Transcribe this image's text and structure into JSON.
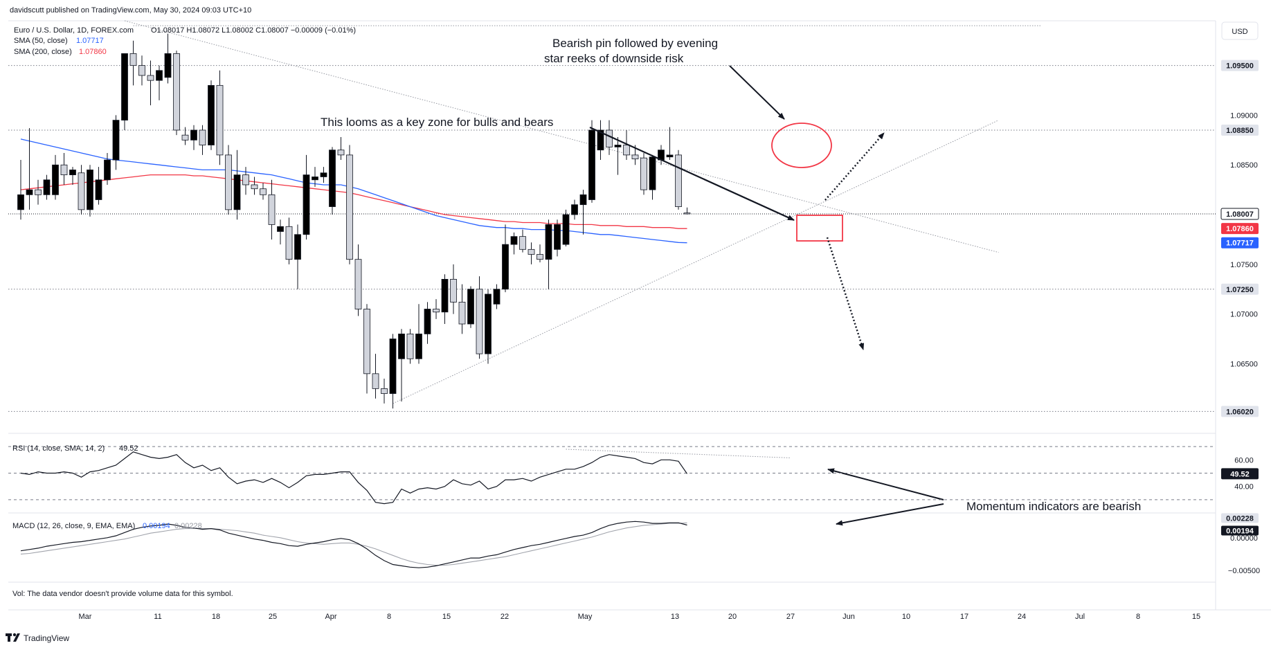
{
  "header": {
    "published": "davidscutt published on TradingView.com, May 30, 2024 09:03 UTC+10",
    "symbol": "Euro / U.S. Dollar, 1D, FOREX.com",
    "ohlc": "O1.08017 H1.08072 L1.08002 C1.08007 −0.00009 (−0.01%)",
    "sma50_label": "SMA (50, close)",
    "sma50_value": "1.07717",
    "sma200_label": "SMA (200, close)",
    "sma200_value": "1.07860",
    "currency": "USD"
  },
  "colors": {
    "sma50": "#2962ff",
    "sma200": "#f23645",
    "candle_up": "#000000",
    "candle_down": "#d1d4dc",
    "annotation_red": "#f23645",
    "last_price": "#131722"
  },
  "chart_data": [
    {
      "type": "candlestick",
      "title": "Euro / U.S. Dollar, 1D, FOREX.com",
      "ylim": [
        1.058,
        1.0995
      ],
      "yticks": [
        1.065,
        1.07,
        1.075,
        1.085,
        1.09
      ],
      "xtick_labels": [
        "Mar",
        "11",
        "18",
        "25",
        "Apr",
        "8",
        "15",
        "22",
        "May",
        "13",
        "20",
        "27",
        "Jun",
        "10",
        "17",
        "24",
        "Jul",
        "8",
        "15"
      ],
      "candles": [
        {
          "o": 1.0805,
          "h": 1.0855,
          "l": 1.0795,
          "c": 1.082
        },
        {
          "o": 1.082,
          "h": 1.0887,
          "l": 1.0805,
          "c": 1.0825
        },
        {
          "o": 1.0825,
          "h": 1.0835,
          "l": 1.081,
          "c": 1.082
        },
        {
          "o": 1.082,
          "h": 1.084,
          "l": 1.0815,
          "c": 1.0835
        },
        {
          "o": 1.082,
          "h": 1.086,
          "l": 1.0815,
          "c": 1.085
        },
        {
          "o": 1.085,
          "h": 1.0862,
          "l": 1.083,
          "c": 1.084
        },
        {
          "o": 1.084,
          "h": 1.0848,
          "l": 1.083,
          "c": 1.0845
        },
        {
          "o": 1.0842,
          "h": 1.085,
          "l": 1.08,
          "c": 1.0805
        },
        {
          "o": 1.0805,
          "h": 1.085,
          "l": 1.0798,
          "c": 1.0845
        },
        {
          "o": 1.0815,
          "h": 1.0848,
          "l": 1.081,
          "c": 1.0835
        },
        {
          "o": 1.0835,
          "h": 1.0862,
          "l": 1.083,
          "c": 1.0855
        },
        {
          "o": 1.0855,
          "h": 1.09,
          "l": 1.0845,
          "c": 1.0895
        },
        {
          "o": 1.0895,
          "h": 1.096,
          "l": 1.0885,
          "c": 1.0962
        },
        {
          "o": 1.0962,
          "h": 1.0975,
          "l": 1.093,
          "c": 1.095
        },
        {
          "o": 1.095,
          "h": 1.096,
          "l": 1.093,
          "c": 1.094
        },
        {
          "o": 1.094,
          "h": 1.0955,
          "l": 1.091,
          "c": 1.0935
        },
        {
          "o": 1.0935,
          "h": 1.095,
          "l": 1.0915,
          "c": 1.0945
        },
        {
          "o": 1.0938,
          "h": 1.0982,
          "l": 1.0932,
          "c": 1.0962
        },
        {
          "o": 1.0962,
          "h": 1.0965,
          "l": 1.088,
          "c": 1.0885
        },
        {
          "o": 1.088,
          "h": 1.0888,
          "l": 1.087,
          "c": 1.0875
        },
        {
          "o": 1.0875,
          "h": 1.089,
          "l": 1.0865,
          "c": 1.0885
        },
        {
          "o": 1.0885,
          "h": 1.089,
          "l": 1.086,
          "c": 1.087
        },
        {
          "o": 1.087,
          "h": 1.0935,
          "l": 1.0865,
          "c": 1.093
        },
        {
          "o": 1.093,
          "h": 1.0945,
          "l": 1.085,
          "c": 1.086
        },
        {
          "o": 1.086,
          "h": 1.087,
          "l": 1.08,
          "c": 1.0805
        },
        {
          "o": 1.0805,
          "h": 1.0865,
          "l": 1.0795,
          "c": 1.084
        },
        {
          "o": 1.084,
          "h": 1.0848,
          "l": 1.082,
          "c": 1.083
        },
        {
          "o": 1.083,
          "h": 1.0838,
          "l": 1.082,
          "c": 1.0826
        },
        {
          "o": 1.0826,
          "h": 1.0832,
          "l": 1.0815,
          "c": 1.082
        },
        {
          "o": 1.082,
          "h": 1.0835,
          "l": 1.0775,
          "c": 1.079
        },
        {
          "o": 1.0783,
          "h": 1.0795,
          "l": 1.077,
          "c": 1.0788
        },
        {
          "o": 1.0788,
          "h": 1.0797,
          "l": 1.075,
          "c": 1.0755
        },
        {
          "o": 1.0755,
          "h": 1.079,
          "l": 1.0725,
          "c": 1.078
        },
        {
          "o": 1.078,
          "h": 1.086,
          "l": 1.0775,
          "c": 1.084
        },
        {
          "o": 1.0835,
          "h": 1.0848,
          "l": 1.0828,
          "c": 1.0838
        },
        {
          "o": 1.0838,
          "h": 1.0848,
          "l": 1.0832,
          "c": 1.0842
        },
        {
          "o": 1.0808,
          "h": 1.0868,
          "l": 1.08,
          "c": 1.0865
        },
        {
          "o": 1.0865,
          "h": 1.0878,
          "l": 1.0855,
          "c": 1.086
        },
        {
          "o": 1.086,
          "h": 1.087,
          "l": 1.075,
          "c": 1.0755
        },
        {
          "o": 1.0755,
          "h": 1.077,
          "l": 1.0698,
          "c": 1.0705
        },
        {
          "o": 1.0705,
          "h": 1.071,
          "l": 1.062,
          "c": 1.064
        },
        {
          "o": 1.064,
          "h": 1.066,
          "l": 1.0615,
          "c": 1.0625
        },
        {
          "o": 1.0625,
          "h": 1.0635,
          "l": 1.061,
          "c": 1.062
        },
        {
          "o": 1.062,
          "h": 1.068,
          "l": 1.0605,
          "c": 1.0675
        },
        {
          "o": 1.0655,
          "h": 1.0685,
          "l": 1.0612,
          "c": 1.068
        },
        {
          "o": 1.068,
          "h": 1.0685,
          "l": 1.065,
          "c": 1.0655
        },
        {
          "o": 1.0655,
          "h": 1.071,
          "l": 1.065,
          "c": 1.068
        },
        {
          "o": 1.068,
          "h": 1.0712,
          "l": 1.067,
          "c": 1.0705
        },
        {
          "o": 1.0705,
          "h": 1.0715,
          "l": 1.0695,
          "c": 1.0702
        },
        {
          "o": 1.0702,
          "h": 1.074,
          "l": 1.069,
          "c": 1.0735
        },
        {
          "o": 1.0735,
          "h": 1.075,
          "l": 1.07,
          "c": 1.0712
        },
        {
          "o": 1.0712,
          "h": 1.073,
          "l": 1.068,
          "c": 1.069
        },
        {
          "o": 1.069,
          "h": 1.0728,
          "l": 1.0686,
          "c": 1.0725
        },
        {
          "o": 1.0725,
          "h": 1.0738,
          "l": 1.0655,
          "c": 1.066
        },
        {
          "o": 1.066,
          "h": 1.0725,
          "l": 1.065,
          "c": 1.072
        },
        {
          "o": 1.071,
          "h": 1.073,
          "l": 1.0705,
          "c": 1.0725
        },
        {
          "o": 1.0725,
          "h": 1.079,
          "l": 1.0722,
          "c": 1.077
        },
        {
          "o": 1.077,
          "h": 1.0782,
          "l": 1.076,
          "c": 1.0778
        },
        {
          "o": 1.0778,
          "h": 1.0785,
          "l": 1.0762,
          "c": 1.0765
        },
        {
          "o": 1.0765,
          "h": 1.0772,
          "l": 1.075,
          "c": 1.076
        },
        {
          "o": 1.076,
          "h": 1.077,
          "l": 1.0752,
          "c": 1.0755
        },
        {
          "o": 1.0755,
          "h": 1.0795,
          "l": 1.0725,
          "c": 1.079
        },
        {
          "o": 1.0765,
          "h": 1.0795,
          "l": 1.0758,
          "c": 1.079
        },
        {
          "o": 1.077,
          "h": 1.0805,
          "l": 1.0768,
          "c": 1.08
        },
        {
          "o": 1.08,
          "h": 1.0815,
          "l": 1.0795,
          "c": 1.081
        },
        {
          "o": 1.081,
          "h": 1.0825,
          "l": 1.078,
          "c": 1.082
        },
        {
          "o": 1.0815,
          "h": 1.0895,
          "l": 1.0812,
          "c": 1.0885
        },
        {
          "o": 1.0865,
          "h": 1.0895,
          "l": 1.0855,
          "c": 1.0885
        },
        {
          "o": 1.0885,
          "h": 1.0895,
          "l": 1.086,
          "c": 1.0868
        },
        {
          "o": 1.0868,
          "h": 1.0878,
          "l": 1.084,
          "c": 1.087
        },
        {
          "o": 1.087,
          "h": 1.0885,
          "l": 1.0855,
          "c": 1.086
        },
        {
          "o": 1.086,
          "h": 1.087,
          "l": 1.085,
          "c": 1.0856
        },
        {
          "o": 1.0857,
          "h": 1.0862,
          "l": 1.082,
          "c": 1.0825
        },
        {
          "o": 1.0825,
          "h": 1.086,
          "l": 1.0815,
          "c": 1.0858
        },
        {
          "o": 1.0855,
          "h": 1.087,
          "l": 1.085,
          "c": 1.0865
        },
        {
          "o": 1.0858,
          "h": 1.0888,
          "l": 1.0855,
          "c": 1.086
        },
        {
          "o": 1.086,
          "h": 1.0865,
          "l": 1.0805,
          "c": 1.0808
        },
        {
          "o": 1.08017,
          "h": 1.08072,
          "l": 1.08002,
          "c": 1.08007
        }
      ],
      "sma50": [
        1.0876,
        1.0874,
        1.0872,
        1.087,
        1.0868,
        1.0866,
        1.0864,
        1.0862,
        1.086,
        1.0858,
        1.0856,
        1.0855,
        1.0854,
        1.0853,
        1.0852,
        1.0851,
        1.085,
        1.0849,
        1.0848,
        1.0847,
        1.0846,
        1.0845,
        1.0845,
        1.0845,
        1.0845,
        1.0844,
        1.0843,
        1.0842,
        1.0841,
        1.084,
        1.0838,
        1.0836,
        1.0834,
        1.0832,
        1.0831,
        1.083,
        1.083,
        1.083,
        1.0828,
        1.0826,
        1.0823,
        1.082,
        1.0817,
        1.0814,
        1.0811,
        1.0808,
        1.0805,
        1.0802,
        1.0799,
        1.0797,
        1.0795,
        1.0793,
        1.0791,
        1.0789,
        1.0788,
        1.0787,
        1.0787,
        1.0786,
        1.0786,
        1.0785,
        1.0785,
        1.0785,
        1.0784,
        1.0784,
        1.0783,
        1.0782,
        1.0781,
        1.078,
        1.078,
        1.0779,
        1.0778,
        1.0777,
        1.0776,
        1.0775,
        1.0774,
        1.0773,
        1.0772,
        1.07717
      ],
      "sma200": [
        1.0825,
        1.0826,
        1.0827,
        1.0828,
        1.0829,
        1.083,
        1.0831,
        1.0832,
        1.0833,
        1.0834,
        1.0835,
        1.0836,
        1.0837,
        1.0838,
        1.0839,
        1.084,
        1.084,
        1.084,
        1.084,
        1.084,
        1.0839,
        1.0839,
        1.0838,
        1.0837,
        1.0836,
        1.0835,
        1.0834,
        1.0833,
        1.0832,
        1.0831,
        1.083,
        1.0829,
        1.0828,
        1.0827,
        1.0826,
        1.0825,
        1.0824,
        1.0823,
        1.0822,
        1.082,
        1.0818,
        1.0816,
        1.0814,
        1.0812,
        1.081,
        1.0808,
        1.0806,
        1.0804,
        1.0802,
        1.08,
        1.0799,
        1.0798,
        1.0797,
        1.0796,
        1.0795,
        1.0794,
        1.0793,
        1.0793,
        1.0792,
        1.0792,
        1.0792,
        1.0791,
        1.0791,
        1.0791,
        1.079,
        1.079,
        1.079,
        1.0789,
        1.0789,
        1.0789,
        1.0788,
        1.0788,
        1.0788,
        1.0787,
        1.0787,
        1.0787,
        1.0786,
        1.0786
      ],
      "price_tags": [
        {
          "value": 1.095,
          "label": "1.09500",
          "style": "level"
        },
        {
          "value": 1.0885,
          "label": "1.08850",
          "style": "level"
        },
        {
          "value": 1.08007,
          "label": "1.08007",
          "style": "last"
        },
        {
          "value": 1.0786,
          "label": "1.07860",
          "style": "sma200"
        },
        {
          "value": 1.07717,
          "label": "1.07717",
          "style": "sma50"
        },
        {
          "value": 1.0725,
          "label": "1.07250",
          "style": "level"
        },
        {
          "value": 1.0602,
          "label": "1.06020",
          "style": "level"
        }
      ],
      "annotations": [
        "Bearish pin followed by evening",
        "star reeks of downside risk",
        "This looms as a key zone for bulls and bears"
      ]
    },
    {
      "type": "line",
      "title": "RSI (14, close, SMA, 14, 2)",
      "value_label": "49.52",
      "ylim": [
        20,
        80
      ],
      "yticks": [
        40,
        60
      ],
      "values": [
        50,
        49,
        51,
        50,
        50,
        51,
        50,
        47,
        51,
        52,
        54,
        56,
        61,
        66,
        64,
        62,
        61,
        62,
        64,
        58,
        54,
        56,
        52,
        54,
        47,
        42,
        44,
        45,
        43,
        46,
        43,
        39,
        43,
        48,
        49,
        49,
        50,
        51,
        51,
        43,
        37,
        28,
        27,
        28,
        38,
        35,
        38,
        39,
        38,
        40,
        45,
        42,
        41,
        44,
        38,
        40,
        45,
        45,
        46,
        44,
        47,
        49,
        51,
        53,
        53,
        55,
        58,
        62,
        64,
        63,
        62,
        61,
        58,
        57,
        60,
        60,
        59,
        49.52
      ],
      "ref_lines": [
        70,
        50,
        30
      ],
      "annotation": "Momentum indicators are bearish"
    },
    {
      "type": "line",
      "title": "MACD (12, 26, close, 9, EMA, EMA)",
      "macd_label": "0.00194",
      "signal_label": "0.00228",
      "ylim": [
        -0.0068,
        0.0038
      ],
      "yticks": [
        0.0,
        -0.005
      ],
      "macd": [
        -0.002,
        -0.0018,
        -0.0016,
        -0.0013,
        -0.0011,
        -0.0009,
        -0.0007,
        -0.0006,
        -0.0004,
        -0.0002,
        0.0,
        0.0003,
        0.0008,
        0.0013,
        0.0016,
        0.0018,
        0.0019,
        0.0021,
        0.0019,
        0.0016,
        0.0015,
        0.0013,
        0.0014,
        0.0012,
        0.0007,
        0.0004,
        0.0001,
        -0.0002,
        -0.0004,
        -0.0007,
        -0.0009,
        -0.0012,
        -0.0013,
        -0.001,
        -0.0008,
        -0.0006,
        -0.0003,
        -0.0001,
        -0.0003,
        -0.0009,
        -0.0017,
        -0.0027,
        -0.0035,
        -0.0041,
        -0.0043,
        -0.0045,
        -0.0046,
        -0.0045,
        -0.0043,
        -0.004,
        -0.0037,
        -0.0034,
        -0.0031,
        -0.0031,
        -0.0028,
        -0.0026,
        -0.0022,
        -0.0018,
        -0.0015,
        -0.0012,
        -0.001,
        -0.0007,
        -0.0004,
        -0.0001,
        0.0002,
        0.0004,
        0.0008,
        0.0014,
        0.0019,
        0.0022,
        0.0024,
        0.0025,
        0.0024,
        0.0022,
        0.0022,
        0.0023,
        0.0023,
        0.00194
      ],
      "signal": [
        -0.0025,
        -0.0024,
        -0.0022,
        -0.002,
        -0.0018,
        -0.0016,
        -0.0014,
        -0.0012,
        -0.001,
        -0.0008,
        -0.0006,
        -0.0004,
        -0.0002,
        0.0001,
        0.0004,
        0.0007,
        0.0009,
        0.0011,
        0.0013,
        0.0014,
        0.0014,
        0.0014,
        0.0014,
        0.0013,
        0.0012,
        0.0011,
        0.0009,
        0.0007,
        0.0004,
        0.0002,
        0.0,
        -0.0003,
        -0.0006,
        -0.0008,
        -0.0009,
        -0.001,
        -0.0009,
        -0.0008,
        -0.0008,
        -0.001,
        -0.0013,
        -0.0017,
        -0.0022,
        -0.0027,
        -0.0032,
        -0.0036,
        -0.0039,
        -0.0041,
        -0.0042,
        -0.0042,
        -0.0041,
        -0.0039,
        -0.0037,
        -0.0035,
        -0.0033,
        -0.0031,
        -0.0029,
        -0.0026,
        -0.0023,
        -0.002,
        -0.0017,
        -0.0014,
        -0.0011,
        -0.0008,
        -0.0005,
        -0.0002,
        0.0001,
        0.0005,
        0.0009,
        0.0012,
        0.0015,
        0.0017,
        0.0019,
        0.002,
        0.0021,
        0.0022,
        0.0022,
        0.00228
      ]
    }
  ],
  "footer": {
    "vol_note": "Vol: The data vendor doesn't provide volume data for this symbol.",
    "logo_text": "TradingView"
  }
}
